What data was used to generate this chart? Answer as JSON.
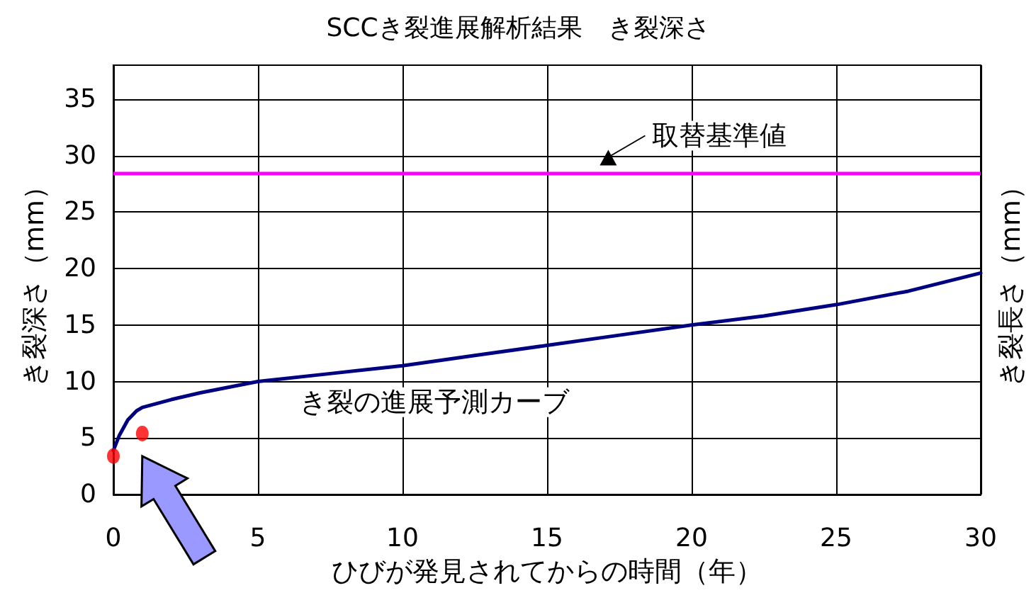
{
  "chart_data": {
    "type": "line",
    "title": "SCCき裂進展解析結果　き裂深さ",
    "xlabel": "ひびが発見されてからの時間（年）",
    "ylabel": "き裂深さ（mm）",
    "y2label": "き裂長さ（mm）",
    "xlim": [
      0,
      30
    ],
    "xticks": [
      0,
      5,
      10,
      15,
      20,
      25,
      30
    ],
    "ylim": [
      0,
      38
    ],
    "yticks": [
      0,
      5,
      10,
      15,
      20,
      25,
      30,
      35
    ],
    "grid": true,
    "marker": "none",
    "line_style": "solid",
    "series": [
      {
        "color": "#000080",
        "x": [
          0,
          0.2,
          0.5,
          0.8,
          1,
          2,
          3,
          4,
          5,
          7.5,
          10,
          12.5,
          15,
          17.5,
          20,
          22.5,
          25,
          27.5,
          30
        ],
        "values": [
          3.9,
          5.2,
          6.6,
          7.4,
          7.7,
          8.4,
          9.0,
          9.5,
          10.0,
          10.7,
          11.4,
          12.3,
          13.2,
          14.1,
          15.0,
          15.8,
          16.8,
          18.0,
          19.6
        ]
      },
      {
        "type": "scatter",
        "marker": "circle",
        "color": "#ff0000",
        "x": [
          0,
          1
        ],
        "values": [
          3.4,
          5.4
        ]
      }
    ],
    "ref_lines": [
      {
        "axis": "y",
        "value": 28.5,
        "label": "取替基準値",
        "color": "#ff00ff",
        "line_style": "solid"
      }
    ],
    "annotations": [
      "き裂の進展予測カーブ"
    ]
  }
}
